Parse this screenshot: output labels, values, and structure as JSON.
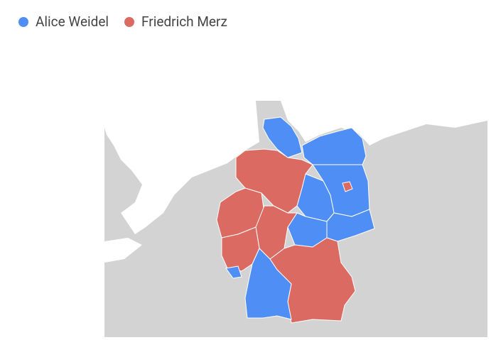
{
  "legend": [
    {
      "name": "Alice Weidel",
      "color": "#4f8ef5"
    },
    {
      "name": "Friedrich Merz",
      "color": "#db6b62"
    }
  ]
}
